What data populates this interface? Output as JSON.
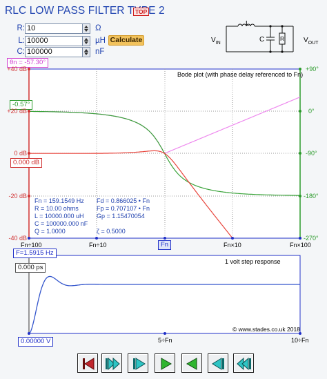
{
  "header": {
    "title": "RLC LOW PASS FILTER TYPE 2",
    "top_badge": "TOP"
  },
  "inputs": {
    "r": {
      "label": "R:",
      "value": "10",
      "unit": "Ω"
    },
    "l": {
      "label": "L:",
      "value": "10000",
      "unit": "µH"
    },
    "c": {
      "label": "C:",
      "value": "100000",
      "unit": "nF"
    }
  },
  "calculate_label": "Calculate",
  "circuit": {
    "l_label": "L",
    "c_label": "C",
    "r_label": "R",
    "vin_label": "V",
    "vin_sub": "IN",
    "vout_label": "V",
    "vout_sub": "OUT"
  },
  "bode": {
    "title": "Bode plot (with phase delay referenced to Fn)",
    "phase_readout": "θn = -57.30°",
    "phase_marker": "-0.57°",
    "gain_marker": "0.000 dB",
    "fn_marker": "Fn",
    "freq_readout": "F=1.5915 Hz",
    "y_left_ticks": [
      "+40 dB",
      "+20 dB",
      "0 dB",
      "-20 dB",
      "-40 dB"
    ],
    "y_right_ticks": [
      "+90°",
      "0°",
      "-90°",
      "-180°",
      "-270°"
    ],
    "x_ticks": [
      "Fn÷100",
      "Fn÷10",
      "Fn×10",
      "Fn×100"
    ],
    "colors": {
      "gain": "#e8453c",
      "phase": "#3aa33a",
      "delay": "#ee88ee",
      "axis_left": "#d03030",
      "axis_right": "#2a9a2a",
      "frame": "#2030c8"
    }
  },
  "params": {
    "fn": "Fn  =  159.1549 Hz",
    "r": "R    =  10.00 ohms",
    "l": "L    =  10000.000 uH",
    "c": "C    =  100000.000 nF",
    "q": "Q    =  1.0000",
    "fd": "Fd   =  0.866025 • Fn",
    "fp": "Fp   =  0.707107 • Fn",
    "gp": "Gp   =  1.15470054",
    "zeta": "ζ     =  0.5000"
  },
  "step": {
    "title": "1 volt step response",
    "time_readout": "0.000 ps",
    "volt_readout": "0.00000 V",
    "copyright": "© www.stades.co.uk 2018",
    "x_ticks": [
      "0",
      "5÷Fn",
      "10÷Fn"
    ],
    "color": "#3355cc"
  },
  "transport": {
    "buttons": [
      "skip-to-start",
      "step-back-fast",
      "step-back",
      "play",
      "play-reverse",
      "step-forward-fast",
      "skip-to-end"
    ]
  }
}
